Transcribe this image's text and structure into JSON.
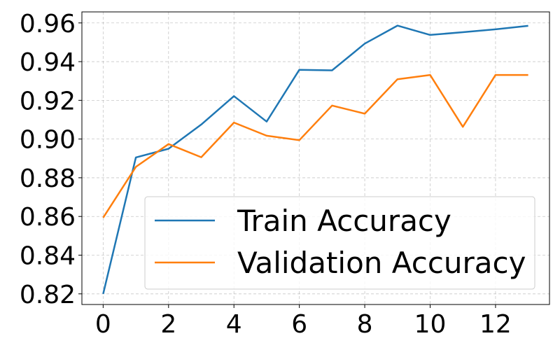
{
  "chart_data": {
    "type": "line",
    "title": "",
    "xlabel": "",
    "ylabel": "",
    "x": [
      0,
      1,
      2,
      3,
      4,
      5,
      6,
      7,
      8,
      9,
      10,
      11,
      12,
      13
    ],
    "xlim": [
      -0.65,
      13.65
    ],
    "ylim": [
      0.8145,
      0.9657
    ],
    "xticks": [
      0,
      2,
      4,
      6,
      8,
      10,
      12
    ],
    "xtick_labels": [
      "0",
      "2",
      "4",
      "6",
      "8",
      "10",
      "12"
    ],
    "yticks": [
      0.82,
      0.84,
      0.86,
      0.88,
      0.9,
      0.92,
      0.94,
      0.96
    ],
    "ytick_labels": [
      "0.82",
      "0.84",
      "0.86",
      "0.88",
      "0.90",
      "0.92",
      "0.94",
      "0.96"
    ],
    "grid": true,
    "legend_position": "lower-right",
    "series": [
      {
        "name": "Train Accuracy",
        "color": "#1f77b4",
        "values": [
          0.82,
          0.8905,
          0.895,
          0.9075,
          0.9222,
          0.909,
          0.9358,
          0.9355,
          0.9493,
          0.9586,
          0.9538,
          0.9552,
          0.9567,
          0.9585
        ]
      },
      {
        "name": "Validation Accuracy",
        "color": "#ff7f0e",
        "values": [
          0.8594,
          0.8856,
          0.8974,
          0.8906,
          0.9085,
          0.9017,
          0.8994,
          0.9173,
          0.9131,
          0.9309,
          0.9331,
          0.9063,
          0.9331,
          0.9331
        ]
      }
    ]
  }
}
